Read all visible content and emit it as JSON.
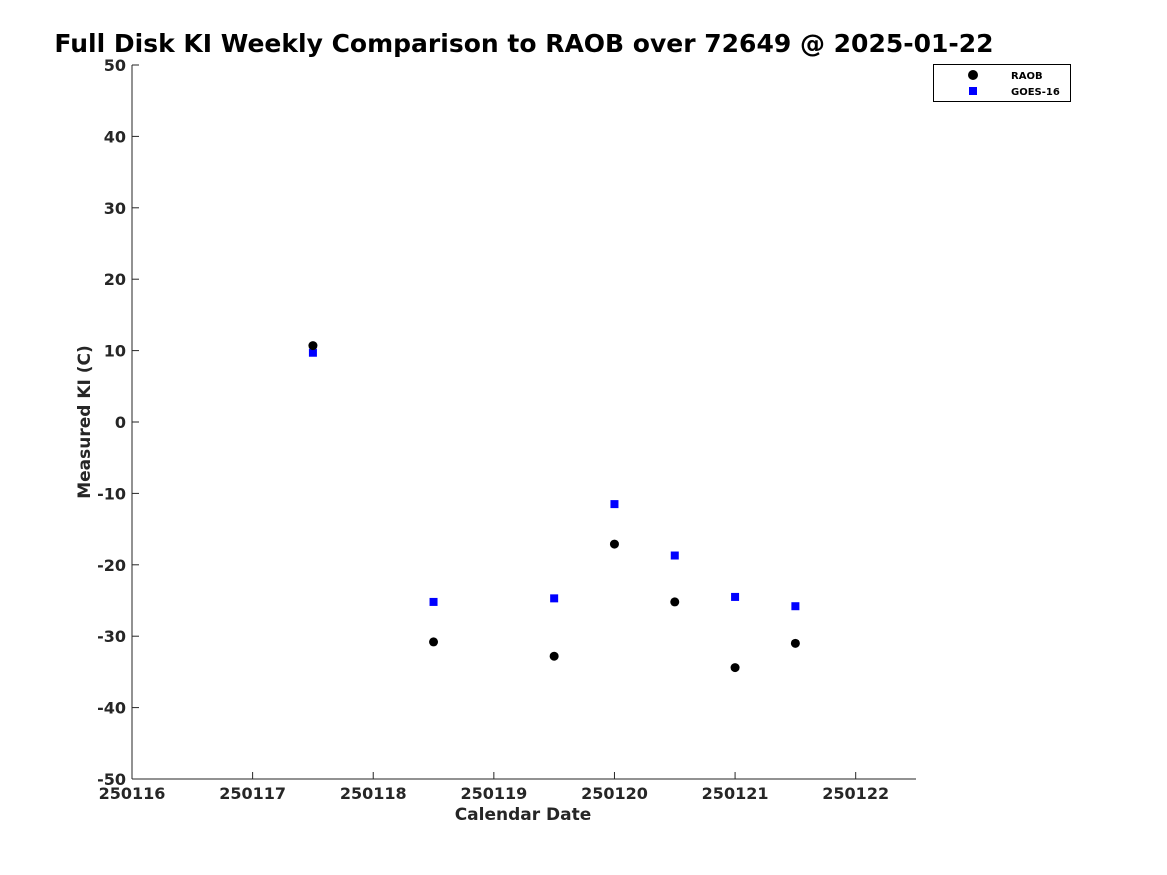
{
  "chart_data": {
    "type": "scatter",
    "title": "Full Disk KI Weekly Comparison to RAOB over 72649 @ 2025-01-22",
    "xlabel": "Calendar Date",
    "ylabel": "Measured KI (C)",
    "xlim": [
      250116,
      250122.5
    ],
    "ylim": [
      -50,
      50
    ],
    "x_ticks": [
      250116,
      250117,
      250118,
      250119,
      250120,
      250121,
      250122
    ],
    "x_tick_labels": [
      "250116",
      "250117",
      "250118",
      "250119",
      "250120",
      "250121",
      "250122"
    ],
    "y_ticks": [
      50,
      40,
      30,
      20,
      10,
      0,
      -10,
      -20,
      -30,
      -40,
      -50
    ],
    "y_tick_labels": [
      "50",
      "40",
      "30",
      "20",
      "10",
      "0",
      "-10",
      "-20",
      "-30",
      "-40",
      "-50"
    ],
    "grid": false,
    "legend_position": "top-right",
    "series": [
      {
        "name": "RAOB",
        "marker": "circle",
        "color": "#000000",
        "x": [
          250117.5,
          250118.5,
          250119.5,
          250120.0,
          250120.5,
          250121.0,
          250121.5
        ],
        "y": [
          10.7,
          -30.8,
          -32.8,
          -17.1,
          -25.2,
          -34.4,
          -31.0
        ]
      },
      {
        "name": "GOES-16",
        "marker": "square",
        "color": "#0000ff",
        "x": [
          250117.5,
          250118.5,
          250119.5,
          250120.0,
          250120.5,
          250121.0,
          250121.5
        ],
        "y": [
          9.7,
          -25.2,
          -24.7,
          -11.5,
          -18.7,
          -24.5,
          -25.8
        ]
      }
    ]
  }
}
